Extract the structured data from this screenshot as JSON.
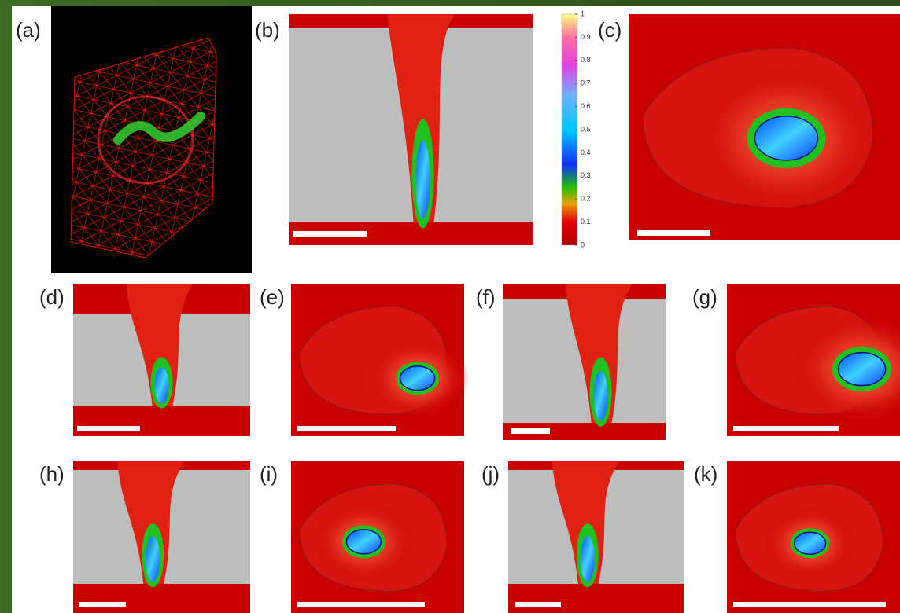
{
  "panels": [
    {
      "label": "(a)"
    },
    {
      "label": "(b)"
    },
    {
      "label": "(c)"
    },
    {
      "label": "(d)"
    },
    {
      "label": "(e)"
    },
    {
      "label": "(f)"
    },
    {
      "label": "(g)"
    },
    {
      "label": "(h)"
    },
    {
      "label": "(i)"
    },
    {
      "label": "(j)"
    },
    {
      "label": "(k)"
    }
  ],
  "colorbar": {
    "ticks": [
      0,
      0.1,
      0.2,
      0.3,
      0.4,
      0.5,
      0.6,
      0.7,
      0.8,
      0.9,
      1
    ]
  }
}
